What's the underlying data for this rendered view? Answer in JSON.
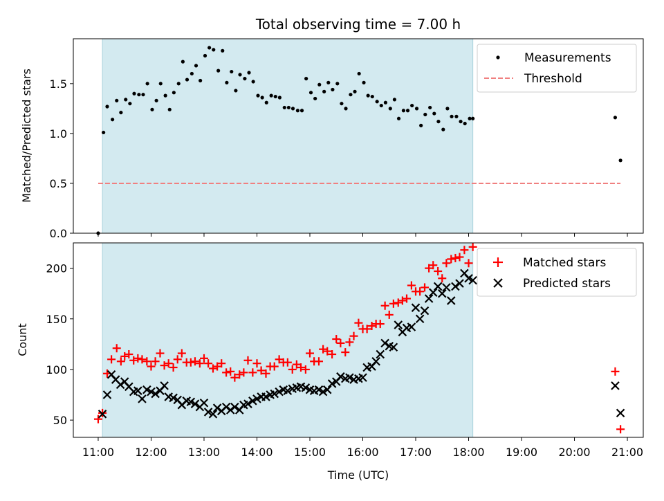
{
  "chart_data": {
    "title": "Total observing time = 7.00 h",
    "xlabel": "Time (UTC)",
    "x_tick_labels": [
      "11:00",
      "12:00",
      "13:00",
      "14:00",
      "15:00",
      "16:00",
      "17:00",
      "18:00",
      "19:00",
      "20:00",
      "21:00"
    ],
    "x_ticks_hours": [
      11,
      12,
      13,
      14,
      15,
      16,
      17,
      18,
      19,
      20,
      21
    ],
    "xlim_hours": [
      10.53,
      21.3
    ],
    "shaded_span_hours": [
      11.08,
      18.08
    ],
    "shade_color": "#d3eaf0",
    "panels": [
      {
        "type": "scatter",
        "ylabel": "Matched/Predicted stars",
        "ylim": [
          0,
          1.95
        ],
        "y_ticks": [
          0.0,
          0.5,
          1.0,
          1.5
        ],
        "y_tick_labels": [
          "0.0",
          "0.5",
          "1.0",
          "1.5"
        ],
        "legend_position": "top-right",
        "series": [
          {
            "name": "Measurements",
            "marker": "dot",
            "color": "#000000",
            "x": [
              11.0,
              11.1,
              11.17,
              11.27,
              11.35,
              11.43,
              11.52,
              11.6,
              11.68,
              11.77,
              11.85,
              11.93,
              12.02,
              12.1,
              12.18,
              12.27,
              12.35,
              12.43,
              12.52,
              12.6,
              12.68,
              12.77,
              12.85,
              12.93,
              13.02,
              13.1,
              13.18,
              13.27,
              13.35,
              13.43,
              13.52,
              13.6,
              13.68,
              13.77,
              13.85,
              13.93,
              14.02,
              14.1,
              14.18,
              14.27,
              14.35,
              14.43,
              14.52,
              14.6,
              14.68,
              14.77,
              14.85,
              14.93,
              15.02,
              15.1,
              15.18,
              15.27,
              15.35,
              15.43,
              15.52,
              15.6,
              15.68,
              15.77,
              15.85,
              15.93,
              16.02,
              16.1,
              16.18,
              16.27,
              16.35,
              16.43,
              16.52,
              16.6,
              16.68,
              16.77,
              16.85,
              16.93,
              17.02,
              17.1,
              17.18,
              17.27,
              17.35,
              17.43,
              17.52,
              17.6,
              17.68,
              17.77,
              17.85,
              17.93,
              18.02,
              18.08,
              20.77,
              20.87
            ],
            "y": [
              0.0,
              1.01,
              1.27,
              1.14,
              1.33,
              1.21,
              1.34,
              1.3,
              1.4,
              1.39,
              1.39,
              1.5,
              1.24,
              1.33,
              1.5,
              1.38,
              1.24,
              1.41,
              1.5,
              1.72,
              1.54,
              1.6,
              1.68,
              1.53,
              1.78,
              1.86,
              1.84,
              1.63,
              1.83,
              1.51,
              1.62,
              1.43,
              1.59,
              1.55,
              1.61,
              1.52,
              1.38,
              1.36,
              1.31,
              1.38,
              1.37,
              1.36,
              1.26,
              1.26,
              1.25,
              1.23,
              1.23,
              1.55,
              1.41,
              1.35,
              1.49,
              1.42,
              1.51,
              1.44,
              1.5,
              1.3,
              1.25,
              1.39,
              1.42,
              1.6,
              1.51,
              1.38,
              1.37,
              1.32,
              1.28,
              1.31,
              1.25,
              1.34,
              1.15,
              1.23,
              1.23,
              1.28,
              1.25,
              1.08,
              1.19,
              1.26,
              1.2,
              1.12,
              1.04,
              1.25,
              1.17,
              1.17,
              1.12,
              1.1,
              1.15,
              1.15,
              1.16,
              0.73
            ]
          },
          {
            "name": "Threshold",
            "marker": "dashed-line",
            "color": "#f08080",
            "x": [
              11.0,
              20.87
            ],
            "y": [
              0.5,
              0.5
            ]
          }
        ]
      },
      {
        "type": "scatter",
        "ylabel": "Count",
        "ylim": [
          33,
          225
        ],
        "y_ticks": [
          50,
          100,
          150,
          200
        ],
        "y_tick_labels": [
          "50",
          "100",
          "150",
          "200"
        ],
        "legend_position": "top-right",
        "series": [
          {
            "name": "Matched stars",
            "marker": "plus",
            "color": "#ff0000",
            "x": [
              11.0,
              11.08,
              11.17,
              11.25,
              11.35,
              11.43,
              11.5,
              11.58,
              11.67,
              11.75,
              11.83,
              11.92,
              12.0,
              12.08,
              12.17,
              12.25,
              12.33,
              12.42,
              12.5,
              12.58,
              12.67,
              12.75,
              12.83,
              12.92,
              13.0,
              13.08,
              13.17,
              13.25,
              13.33,
              13.42,
              13.5,
              13.58,
              13.67,
              13.75,
              13.83,
              13.92,
              14.0,
              14.08,
              14.17,
              14.25,
              14.33,
              14.42,
              14.5,
              14.58,
              14.67,
              14.75,
              14.83,
              14.92,
              15.0,
              15.08,
              15.17,
              15.25,
              15.33,
              15.42,
              15.5,
              15.58,
              15.67,
              15.75,
              15.83,
              15.92,
              16.0,
              16.08,
              16.17,
              16.25,
              16.33,
              16.42,
              16.5,
              16.58,
              16.67,
              16.75,
              16.83,
              16.92,
              17.0,
              17.08,
              17.17,
              17.25,
              17.33,
              17.42,
              17.5,
              17.58,
              17.67,
              17.75,
              17.83,
              17.92,
              18.0,
              18.08,
              20.77,
              20.87
            ],
            "y": [
              51,
              57,
              96,
              110,
              121,
              108,
              113,
              115,
              109,
              111,
              110,
              108,
              103,
              108,
              116,
              104,
              106,
              102,
              110,
              116,
              107,
              107,
              108,
              106,
              111,
              106,
              101,
              103,
              106,
              97,
              98,
              92,
              95,
              97,
              109,
              97,
              106,
              99,
              96,
              103,
              103,
              110,
              107,
              107,
              100,
              105,
              102,
              100,
              116,
              108,
              108,
              120,
              118,
              115,
              130,
              126,
              117,
              127,
              133,
              146,
              140,
              140,
              143,
              145,
              145,
              163,
              154,
              165,
              166,
              168,
              170,
              183,
              177,
              177,
              181,
              200,
              203,
              197,
              190,
              205,
              209,
              210,
              211,
              218,
              205,
              221,
              98,
              41
            ]
          },
          {
            "name": "Predicted stars",
            "marker": "x",
            "color": "#000000",
            "x": [
              11.08,
              11.17,
              11.25,
              11.33,
              11.42,
              11.5,
              11.58,
              11.67,
              11.75,
              11.83,
              11.92,
              12.0,
              12.08,
              12.17,
              12.25,
              12.33,
              12.42,
              12.5,
              12.58,
              12.67,
              12.75,
              12.83,
              12.92,
              13.0,
              13.08,
              13.17,
              13.25,
              13.33,
              13.42,
              13.5,
              13.58,
              13.67,
              13.75,
              13.83,
              13.92,
              14.0,
              14.08,
              14.17,
              14.25,
              14.33,
              14.42,
              14.5,
              14.58,
              14.67,
              14.75,
              14.83,
              14.92,
              15.0,
              15.08,
              15.17,
              15.25,
              15.33,
              15.42,
              15.5,
              15.58,
              15.67,
              15.75,
              15.83,
              15.92,
              16.0,
              16.08,
              16.17,
              16.25,
              16.33,
              16.42,
              16.5,
              16.58,
              16.67,
              16.75,
              16.83,
              16.92,
              17.0,
              17.08,
              17.17,
              17.25,
              17.33,
              17.42,
              17.5,
              17.58,
              17.67,
              17.75,
              17.83,
              17.92,
              18.0,
              18.08,
              20.77,
              20.87
            ],
            "y": [
              56,
              75,
              95,
              90,
              85,
              88,
              83,
              78,
              79,
              71,
              80,
              78,
              76,
              79,
              84,
              73,
              72,
              70,
              65,
              69,
              68,
              66,
              63,
              67,
              58,
              56,
              62,
              59,
              63,
              60,
              63,
              60,
              65,
              66,
              69,
              71,
              73,
              73,
              75,
              76,
              78,
              80,
              79,
              81,
              82,
              83,
              82,
              80,
              79,
              80,
              78,
              80,
              86,
              88,
              93,
              91,
              92,
              90,
              91,
              92,
              102,
              103,
              108,
              115,
              126,
              123,
              122,
              144,
              137,
              141,
              142,
              161,
              150,
              158,
              170,
              176,
              182,
              175,
              181,
              168,
              182,
              185,
              195,
              190,
              188,
              84,
              57
            ]
          }
        ]
      }
    ]
  }
}
